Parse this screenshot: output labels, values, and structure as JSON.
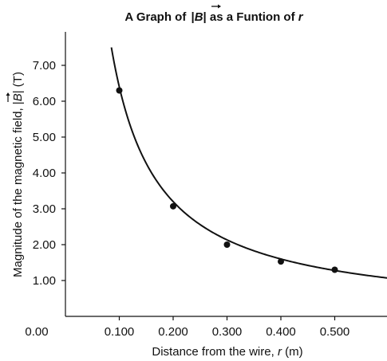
{
  "chart_data": {
    "type": "scatter",
    "title_prefix": "A Graph of ",
    "title_symbol": "B",
    "title_middle": " as a Funtion of ",
    "title_var": "r",
    "xlabel_prefix": "Distance from the wire, ",
    "xlabel_var": "r",
    "xlabel_unit": " (m)",
    "ylabel_prefix": "Magnitude of the magnetic field, ",
    "ylabel_symbol": "B",
    "ylabel_unit": " (T)",
    "x_ticks": [
      "0.100",
      "0.200",
      "0.300",
      "0.400",
      "0.500"
    ],
    "x_tick_values": [
      0.1,
      0.2,
      0.3,
      0.4,
      0.5
    ],
    "y_ticks": [
      "1.00",
      "2.00",
      "3.00",
      "4.00",
      "5.00",
      "6.00",
      "7.00"
    ],
    "y_tick_values": [
      1,
      2,
      3,
      4,
      5,
      6,
      7
    ],
    "origin_label": "0.00",
    "xlim": [
      0,
      0.6
    ],
    "ylim": [
      0,
      7.5
    ],
    "points": [
      {
        "x": 0.1,
        "y": 6.3
      },
      {
        "x": 0.2,
        "y": 3.07
      },
      {
        "x": 0.3,
        "y": 2.0
      },
      {
        "x": 0.4,
        "y": 1.53
      },
      {
        "x": 0.5,
        "y": 1.3
      }
    ],
    "fit_curve": {
      "form": "y = k / x",
      "k": 0.64
    },
    "grid": false,
    "colors": {
      "ink": "#111111"
    }
  }
}
